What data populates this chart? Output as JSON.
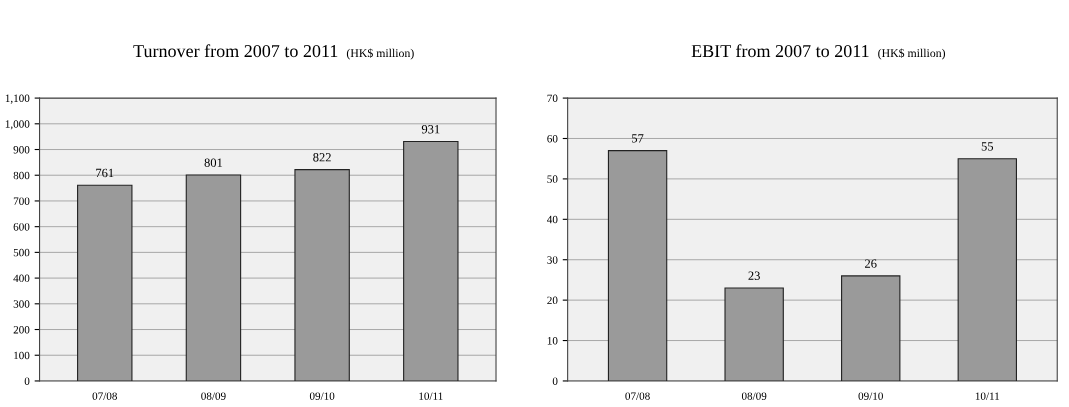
{
  "chart_data": [
    {
      "type": "bar",
      "title": "Turnover from 2007 to 2011",
      "subtitle": "(HK$ million)",
      "categories": [
        "07/08",
        "08/09",
        "09/10",
        "10/11"
      ],
      "values": [
        761,
        801,
        822,
        931
      ],
      "color": "#9a9a9a",
      "data_labels": true,
      "ylim": [
        0,
        1100
      ],
      "yticks": [
        0,
        100,
        200,
        300,
        400,
        500,
        600,
        700,
        800,
        900,
        {
          "value": 1000,
          "label": "1,000"
        },
        {
          "value": 1100,
          "label": "1,100"
        }
      ],
      "grid": "y"
    },
    {
      "type": "bar",
      "title": "EBIT from 2007 to 2011",
      "subtitle": "(HK$ million)",
      "categories": [
        "07/08",
        "08/09",
        "09/10",
        "10/11"
      ],
      "values": [
        57,
        23,
        26,
        55
      ],
      "color": "#9a9a9a",
      "data_labels": true,
      "ylim": [
        0,
        70
      ],
      "yticks": [
        0,
        10,
        20,
        30,
        40,
        50,
        60,
        70
      ],
      "grid": "y"
    }
  ]
}
